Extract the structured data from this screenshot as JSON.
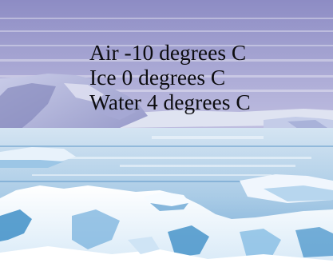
{
  "labels": {
    "air": "Air -10 degrees C",
    "ice": "Ice 0 degrees C",
    "water": "Water 4 degrees C"
  },
  "colors": {
    "sky_top": "#8d8cc4",
    "sky_bottom": "#e9e9f5",
    "glacier": "#b7bcdf",
    "glacier_shadow": "#7d80b8",
    "water": "#86b7dc",
    "water_light": "#cfe5f3",
    "ice_white": "#f4f9ff",
    "ice_shadow": "#3f8fc7",
    "text": "#0d0d10"
  }
}
